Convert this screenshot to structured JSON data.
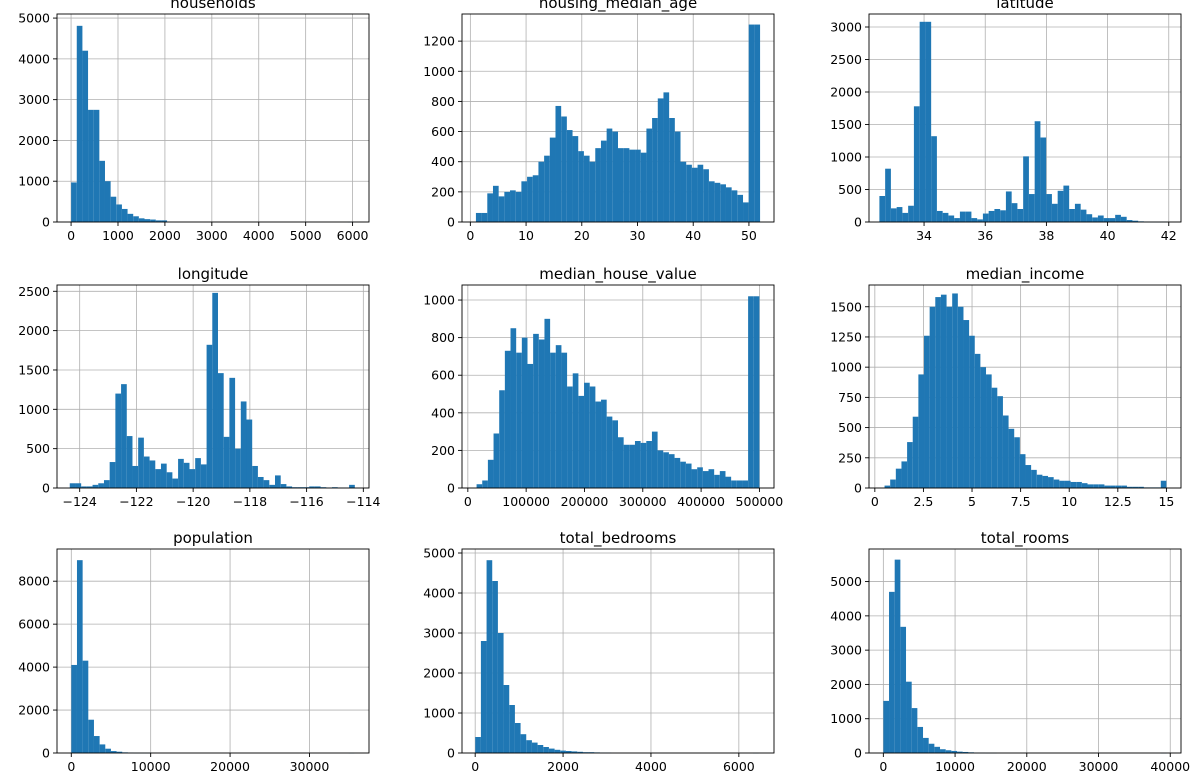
{
  "chart_data": [
    {
      "type": "bar",
      "title": "households",
      "xlim": [
        -300,
        6350
      ],
      "ylim": [
        0,
        5100
      ],
      "xticks": [
        0,
        1000,
        2000,
        3000,
        4000,
        5000,
        6000
      ],
      "yticks": [
        0,
        1000,
        2000,
        3000,
        4000,
        5000
      ],
      "grid": true,
      "bins": {
        "start": 1,
        "width": 120.3
      },
      "values": [
        970,
        4810,
        4200,
        2750,
        2750,
        1500,
        1000,
        620,
        430,
        320,
        200,
        140,
        90,
        70,
        60,
        40,
        40,
        0,
        0,
        0,
        0,
        0,
        0,
        0,
        0,
        0,
        0,
        0,
        0,
        0,
        0,
        0,
        0,
        0,
        0,
        0,
        0,
        0,
        0,
        0,
        0,
        0,
        0,
        0,
        0,
        0,
        0,
        0,
        0,
        3
      ]
    },
    {
      "type": "bar",
      "title": "housing_median_age",
      "xlim": [
        -1.5,
        54.5
      ],
      "ylim": [
        0,
        1380
      ],
      "xticks": [
        0,
        10,
        20,
        30,
        40,
        50
      ],
      "yticks": [
        0,
        200,
        400,
        600,
        800,
        1000,
        1200
      ],
      "grid": true,
      "bins": {
        "start": 1,
        "width": 1.02
      },
      "values": [
        60,
        60,
        190,
        240,
        170,
        200,
        210,
        200,
        270,
        300,
        310,
        400,
        440,
        560,
        770,
        700,
        610,
        570,
        470,
        440,
        400,
        490,
        540,
        620,
        600,
        490,
        490,
        480,
        480,
        460,
        620,
        690,
        820,
        860,
        690,
        600,
        400,
        380,
        360,
        380,
        350,
        270,
        260,
        250,
        230,
        210,
        180,
        130,
        1310,
        1310
      ]
    },
    {
      "type": "bar",
      "title": "latitude",
      "xlim": [
        32.2,
        42.4
      ],
      "ylim": [
        0,
        3200
      ],
      "xticks": [
        34,
        36,
        38,
        40,
        42
      ],
      "yticks": [
        0,
        500,
        1000,
        1500,
        2000,
        2500,
        3000
      ],
      "grid": true,
      "bins": {
        "start": 32.54,
        "width": 0.188
      },
      "values": [
        400,
        820,
        210,
        230,
        140,
        250,
        1780,
        3080,
        3080,
        1320,
        170,
        140,
        100,
        60,
        160,
        160,
        60,
        40,
        130,
        170,
        200,
        180,
        470,
        290,
        200,
        1010,
        430,
        1550,
        1300,
        430,
        280,
        480,
        560,
        200,
        280,
        190,
        120,
        70,
        100,
        60,
        60,
        110,
        80,
        30,
        20,
        10,
        5,
        3,
        2,
        5
      ]
    },
    {
      "type": "bar",
      "title": "longitude",
      "xlim": [
        -124.8,
        -113.8
      ],
      "ylim": [
        0,
        2580
      ],
      "xticks": [
        -124,
        -122,
        -120,
        -118,
        -116,
        -114
      ],
      "yticks": [
        0,
        500,
        1000,
        1500,
        2000,
        2500
      ],
      "grid": true,
      "bins": {
        "start": -124.35,
        "width": 0.201
      },
      "values": [
        60,
        60,
        20,
        20,
        40,
        60,
        100,
        330,
        1200,
        1320,
        660,
        280,
        640,
        400,
        350,
        240,
        310,
        200,
        120,
        370,
        320,
        240,
        380,
        300,
        1820,
        2480,
        1460,
        650,
        1400,
        500,
        1100,
        870,
        280,
        140,
        100,
        40,
        160,
        50,
        20,
        10,
        10,
        10,
        20,
        20,
        10,
        5,
        10,
        5,
        5,
        40
      ]
    },
    {
      "type": "bar",
      "title": "median_house_value",
      "xlim": [
        -10000,
        525000
      ],
      "ylim": [
        0,
        1080
      ],
      "xticks": [
        0,
        100000,
        200000,
        300000,
        400000,
        500000
      ],
      "yticks": [
        0,
        200,
        400,
        600,
        800,
        1000
      ],
      "grid": true,
      "bins": {
        "start": 14999,
        "width": 9700
      },
      "values": [
        20,
        40,
        150,
        290,
        520,
        730,
        850,
        720,
        800,
        660,
        820,
        790,
        900,
        720,
        760,
        720,
        540,
        610,
        490,
        560,
        540,
        460,
        470,
        380,
        360,
        270,
        230,
        230,
        250,
        240,
        250,
        300,
        200,
        190,
        180,
        160,
        140,
        130,
        100,
        110,
        90,
        100,
        70,
        90,
        60,
        40,
        40,
        40,
        1020,
        1020
      ]
    },
    {
      "type": "bar",
      "title": "median_income",
      "xlim": [
        -0.3,
        15.75
      ],
      "ylim": [
        0,
        1680
      ],
      "xticks": [
        0,
        2.5,
        5,
        7.5,
        10,
        12.5,
        15
      ],
      "yticks": [
        0,
        250,
        500,
        750,
        1000,
        1250,
        1500
      ],
      "grid": true,
      "bins": {
        "start": 0.5,
        "width": 0.29
      },
      "values": [
        20,
        70,
        160,
        220,
        380,
        590,
        940,
        1260,
        1500,
        1580,
        1600,
        1500,
        1610,
        1500,
        1390,
        1260,
        1110,
        1000,
        940,
        830,
        760,
        600,
        490,
        420,
        280,
        190,
        150,
        110,
        100,
        90,
        70,
        60,
        60,
        50,
        50,
        40,
        30,
        30,
        30,
        20,
        20,
        20,
        20,
        10,
        10,
        10,
        5,
        5,
        5,
        60
      ]
    },
    {
      "type": "bar",
      "title": "population",
      "xlim": [
        -1800,
        37500
      ],
      "ylim": [
        0,
        9500
      ],
      "xticks": [
        0,
        10000,
        20000,
        30000
      ],
      "yticks": [
        0,
        2000,
        4000,
        6000,
        8000
      ],
      "grid": true,
      "bins": {
        "start": 3,
        "width": 713
      },
      "values": [
        4100,
        8980,
        4300,
        1550,
        790,
        400,
        200,
        90,
        60,
        30,
        20,
        10,
        10,
        10,
        0,
        0,
        0,
        0,
        0,
        0,
        0,
        0,
        0,
        0,
        0,
        0,
        0,
        0,
        0,
        0,
        0,
        0,
        0,
        0,
        0,
        0,
        0,
        0,
        0,
        0,
        0,
        0,
        0,
        0,
        0,
        0,
        0,
        0,
        0,
        2
      ]
    },
    {
      "type": "bar",
      "title": "total_bedrooms",
      "xlim": [
        -300,
        6800
      ],
      "ylim": [
        0,
        5100
      ],
      "xticks": [
        0,
        2000,
        4000,
        6000
      ],
      "yticks": [
        0,
        1000,
        2000,
        3000,
        4000,
        5000
      ],
      "grid": true,
      "bins": {
        "start": 1,
        "width": 129
      },
      "values": [
        400,
        2800,
        4820,
        4300,
        3000,
        1700,
        1200,
        750,
        470,
        320,
        260,
        200,
        150,
        110,
        80,
        60,
        50,
        40,
        30,
        20,
        20,
        15,
        10,
        10,
        0,
        0,
        0,
        0,
        0,
        0,
        0,
        0,
        0,
        0,
        0,
        0,
        0,
        0,
        0,
        0,
        0,
        0,
        0,
        0,
        0,
        0,
        0,
        0,
        0,
        2
      ]
    },
    {
      "type": "bar",
      "title": "total_rooms",
      "xlim": [
        -2000,
        41500
      ],
      "ylim": [
        0,
        5950
      ],
      "xticks": [
        0,
        10000,
        20000,
        30000,
        40000
      ],
      "yticks": [
        0,
        1000,
        2000,
        3000,
        4000,
        5000
      ],
      "grid": true,
      "bins": {
        "start": 2,
        "width": 790
      },
      "values": [
        1520,
        4700,
        5640,
        3680,
        2080,
        1310,
        760,
        440,
        270,
        180,
        110,
        80,
        60,
        40,
        30,
        20,
        10,
        10,
        5,
        5,
        0,
        0,
        0,
        0,
        0,
        0,
        0,
        0,
        0,
        0,
        0,
        0,
        0,
        0,
        0,
        0,
        0,
        0,
        0,
        0,
        0,
        0,
        0,
        0,
        0,
        0,
        0,
        0,
        0,
        2
      ]
    }
  ]
}
